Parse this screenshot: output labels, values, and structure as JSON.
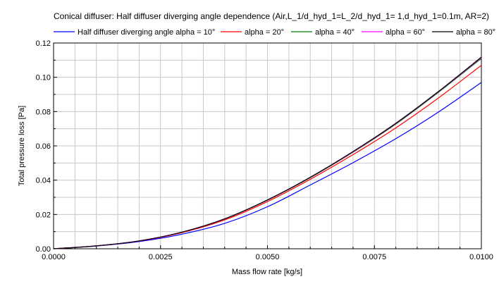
{
  "chart_data": {
    "type": "line",
    "title": "Conical diffuser: Half diffuser diverging angle dependence (Air,L_1/d_hyd_1=L_2/d_hyd_1= 1,d_hyd_1=0.1m, AR=2)",
    "xlabel": "Mass flow rate [kg/s]",
    "ylabel": "Total pressure loss [Pa]",
    "xlim": [
      0,
      0.01
    ],
    "ylim": [
      0,
      0.12
    ],
    "x_ticks": [
      "0.0000",
      "0.0025",
      "0.0050",
      "0.0075",
      "0.0100"
    ],
    "y_ticks": [
      "0.00",
      "0.02",
      "0.04",
      "0.06",
      "0.08",
      "0.10",
      "0.12"
    ],
    "grid": true,
    "legend_position": "top",
    "x": [
      0,
      0.001,
      0.002,
      0.003,
      0.004,
      0.005,
      0.006,
      0.007,
      0.008,
      0.009,
      0.01
    ],
    "series": [
      {
        "name": "Half diffuser diverging angle alpha = 10°",
        "color": "#0000ff",
        "values": [
          0,
          0.0016,
          0.0042,
          0.0085,
          0.0148,
          0.0245,
          0.0372,
          0.0502,
          0.0642,
          0.0798,
          0.097
        ]
      },
      {
        "name": "alpha = 20°",
        "color": "#ff0000",
        "values": [
          0,
          0.0017,
          0.0045,
          0.0094,
          0.0168,
          0.0275,
          0.0405,
          0.0549,
          0.0705,
          0.088,
          0.107
        ]
      },
      {
        "name": "alpha = 40°",
        "color": "#008000",
        "values": [
          0,
          0.0017,
          0.0046,
          0.0097,
          0.0174,
          0.0283,
          0.0414,
          0.0563,
          0.0727,
          0.0913,
          0.111
        ]
      },
      {
        "name": "alpha = 60°",
        "color": "#ff00ff",
        "values": [
          0,
          0.0017,
          0.0046,
          0.0097,
          0.0174,
          0.0284,
          0.0416,
          0.0565,
          0.073,
          0.0916,
          0.1115
        ]
      },
      {
        "name": "alpha = 80°",
        "color": "#000000",
        "values": [
          0,
          0.0017,
          0.0046,
          0.0097,
          0.0175,
          0.0285,
          0.0417,
          0.0567,
          0.0732,
          0.0918,
          0.1118
        ]
      }
    ]
  }
}
